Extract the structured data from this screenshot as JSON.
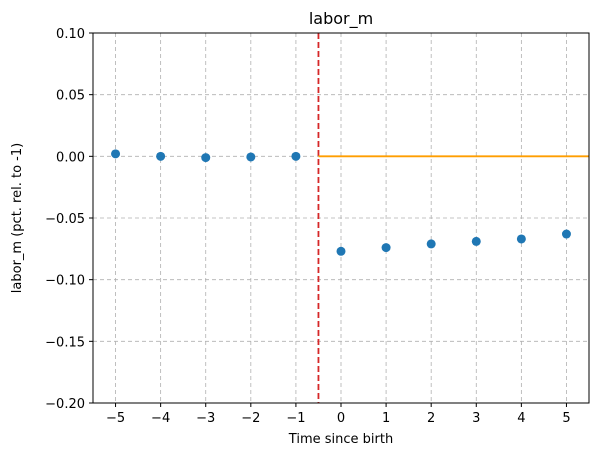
{
  "chart_data": {
    "type": "scatter",
    "title": "labor_m",
    "xlabel": "Time since birth",
    "ylabel": "labor_m (pct. rel. to -1)",
    "xlim": [
      -5.5,
      5.5
    ],
    "ylim": [
      -0.2,
      0.1
    ],
    "x_ticks": [
      -5,
      -4,
      -3,
      -2,
      -1,
      0,
      1,
      2,
      3,
      4,
      5
    ],
    "x_tick_labels": [
      "−5",
      "−4",
      "−3",
      "−2",
      "−1",
      "0",
      "1",
      "2",
      "3",
      "4",
      "5"
    ],
    "y_ticks": [
      0.1,
      0.05,
      0.0,
      -0.05,
      -0.1,
      -0.15,
      -0.2
    ],
    "y_tick_labels": [
      "0.10",
      "0.05",
      "0.00",
      "−0.05",
      "−0.10",
      "−0.15",
      "−0.20"
    ],
    "grid": true,
    "series": [
      {
        "x": [
          -5,
          -4,
          -3,
          -2,
          -1,
          0,
          1,
          2,
          3,
          4,
          5
        ],
        "y": [
          0.002,
          0.0,
          -0.001,
          -0.0005,
          0.0,
          -0.077,
          -0.074,
          -0.071,
          -0.069,
          -0.067,
          -0.063
        ],
        "color": "#1f77b4"
      }
    ],
    "reference_lines": [
      {
        "orientation": "vertical",
        "x": -0.5,
        "color": "#d62728",
        "style": "dashed"
      },
      {
        "orientation": "horizontal",
        "y": 0.0,
        "x_start": -0.5,
        "color": "#ff9e00",
        "style": "solid"
      }
    ],
    "colors": {
      "grid": "#b0b0b0",
      "axis": "#000000"
    }
  }
}
